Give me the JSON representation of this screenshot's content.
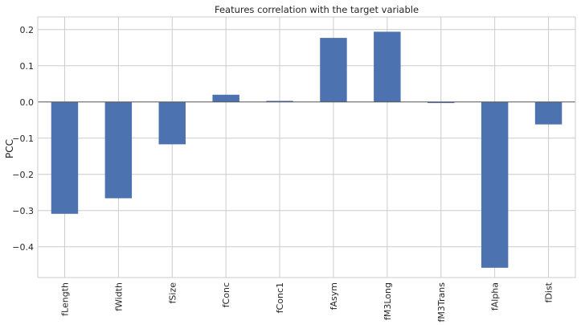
{
  "chart_data": {
    "type": "bar",
    "title": "Features correlation with the target variable",
    "xlabel": "",
    "ylabel": "PCC",
    "categories": [
      "fLength",
      "fWidth",
      "fSize",
      "fConc",
      "fConc1",
      "fAsym",
      "fM3Long",
      "fM3Trans",
      "fAlpha",
      "fDist"
    ],
    "values": [
      -0.309,
      -0.266,
      -0.117,
      0.02,
      0.003,
      0.177,
      0.194,
      -0.003,
      -0.458,
      -0.062
    ],
    "ylim": [
      -0.485,
      0.235
    ],
    "yticks": [
      0.2,
      0.1,
      0.0,
      -0.1,
      -0.2,
      -0.3,
      -0.4
    ],
    "ytick_labels": [
      "0.2",
      "0.1",
      "0.0",
      "−0.1",
      "−0.2",
      "−0.3",
      "−0.4"
    ],
    "grid": true,
    "bar_color": "#4c72b0",
    "grid_color": "#cccccc",
    "zero_line_color": "#555555"
  }
}
